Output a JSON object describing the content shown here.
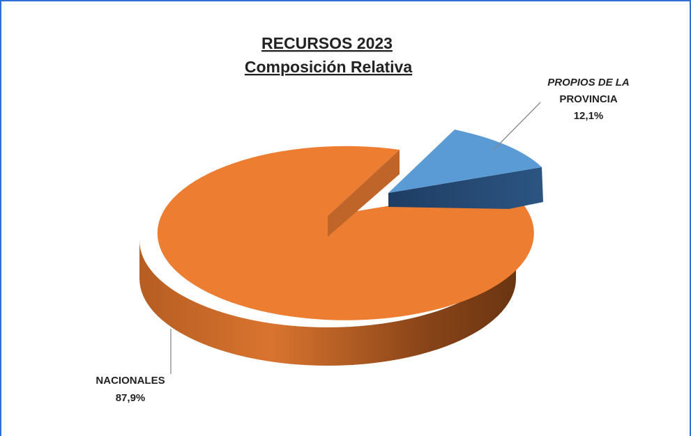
{
  "chart_data": {
    "type": "pie",
    "title": [
      "RECURSOS 2023",
      "Composición Relativa"
    ],
    "slices": [
      {
        "label": [
          "PROPIOS DE LA",
          "PROVINCIA"
        ],
        "value_label": "12,1%",
        "value": 12.1,
        "color": "#5b9bd5",
        "side_color": "#24466e",
        "exploded": true
      },
      {
        "label": [
          "NACIONALES"
        ],
        "value_label": "87,9%",
        "value": 87.9,
        "color": "#ed7d31",
        "side_color": "#a2531c",
        "exploded": false
      }
    ]
  }
}
